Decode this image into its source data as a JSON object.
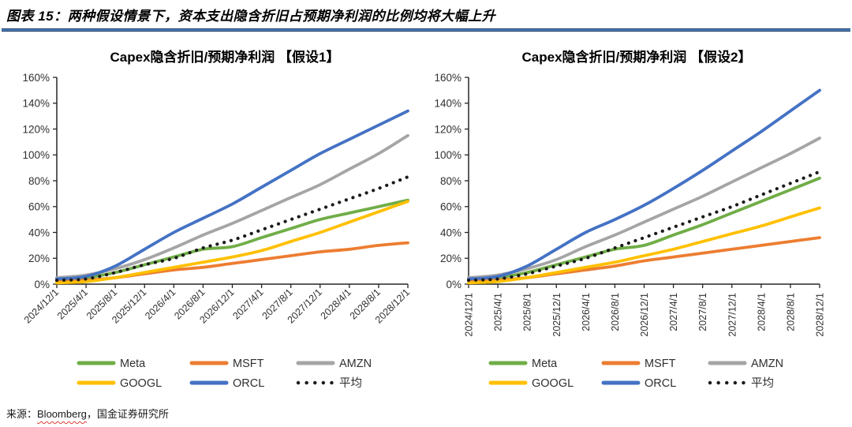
{
  "figure_title": "图表 15：两种假设情景下，资本支出隐含折旧占预期净利润的比例均将大幅上升",
  "source": {
    "prefix": "来源：",
    "vendor": "Bloomberg",
    "separator": "，",
    "institution": "国金证券研究所"
  },
  "colors": {
    "meta": "#70ad47",
    "msft": "#ed7d31",
    "amzn": "#a5a5a5",
    "googl": "#ffc000",
    "orcl": "#4472c4",
    "average": "#1a1a1a",
    "axis": "#262626",
    "rule_outer": "#17375e",
    "rule_inner": "#4f81bd",
    "squiggle": "#e03c31"
  },
  "chart_data": [
    {
      "type": "line",
      "title": "Capex隐含折旧/预期净利润 【假设1】",
      "x_labels": [
        "2024/12/1",
        "2025/4/1",
        "2025/8/1",
        "2025/12/1",
        "2026/4/1",
        "2026/8/1",
        "2026/12/1",
        "2027/4/1",
        "2027/8/1",
        "2027/12/1",
        "2028/4/1",
        "2028/8/1",
        "2028/12/1"
      ],
      "x_label_rotation": -45,
      "ylim": [
        0,
        160
      ],
      "y_tick_step": 20,
      "y_tick_suffix": "%",
      "grid": false,
      "legend_position": "bottom",
      "series": [
        {
          "name": "Meta",
          "color": "#70ad47",
          "style": "solid",
          "values": [
            3,
            5,
            9,
            15,
            21,
            27,
            29,
            36,
            43,
            50,
            55,
            60,
            65
          ]
        },
        {
          "name": "MSFT",
          "color": "#ed7d31",
          "style": "solid",
          "values": [
            2,
            3,
            5,
            8,
            11,
            13,
            16,
            19,
            22,
            25,
            27,
            30,
            32
          ]
        },
        {
          "name": "AMZN",
          "color": "#a5a5a5",
          "style": "solid",
          "values": [
            5,
            7,
            12,
            19,
            28,
            38,
            47,
            57,
            67,
            77,
            89,
            101,
            115
          ]
        },
        {
          "name": "GOOGL",
          "color": "#ffc000",
          "style": "solid",
          "values": [
            1,
            2,
            5,
            9,
            13,
            17,
            21,
            26,
            33,
            40,
            48,
            56,
            64
          ]
        },
        {
          "name": "ORCL",
          "color": "#4472c4",
          "style": "solid",
          "values": [
            4,
            6,
            14,
            27,
            40,
            51,
            62,
            75,
            88,
            101,
            112,
            123,
            134
          ]
        },
        {
          "name": "平均",
          "color": "#1a1a1a",
          "style": "dotted",
          "values": [
            3,
            4,
            9,
            15,
            20,
            28,
            34,
            42,
            50,
            58,
            66,
            74,
            83
          ]
        }
      ],
      "legend_rows": [
        [
          "Meta",
          "MSFT",
          "AMZN"
        ],
        [
          "GOOGL",
          "ORCL",
          "平均"
        ]
      ]
    },
    {
      "type": "line",
      "title": "Capex隐含折旧/预期净利润 【假设2】",
      "x_labels": [
        "2024/12/1",
        "2025/4/1",
        "2025/8/1",
        "2025/12/1",
        "2026/4/1",
        "2026/8/1",
        "2026/12/1",
        "2027/4/1",
        "2027/8/1",
        "2027/12/1",
        "2028/4/1",
        "2028/8/1",
        "2028/12/1"
      ],
      "x_label_rotation": -90,
      "ylim": [
        0,
        160
      ],
      "y_tick_step": 20,
      "y_tick_suffix": "%",
      "grid": false,
      "legend_position": "bottom",
      "series": [
        {
          "name": "Meta",
          "color": "#70ad47",
          "style": "solid",
          "values": [
            3,
            5,
            9,
            15,
            21,
            27,
            30,
            38,
            46,
            55,
            64,
            73,
            82
          ]
        },
        {
          "name": "MSFT",
          "color": "#ed7d31",
          "style": "solid",
          "values": [
            2,
            3,
            5,
            8,
            11,
            14,
            18,
            21,
            24,
            27,
            30,
            33,
            36
          ]
        },
        {
          "name": "AMZN",
          "color": "#a5a5a5",
          "style": "solid",
          "values": [
            5,
            7,
            12,
            19,
            29,
            38,
            48,
            58,
            68,
            79,
            90,
            101,
            113
          ]
        },
        {
          "name": "GOOGL",
          "color": "#ffc000",
          "style": "solid",
          "values": [
            1,
            2,
            5,
            9,
            13,
            17,
            22,
            27,
            33,
            39,
            45,
            52,
            59
          ]
        },
        {
          "name": "ORCL",
          "color": "#4472c4",
          "style": "solid",
          "values": [
            4,
            6,
            14,
            27,
            40,
            50,
            61,
            74,
            88,
            103,
            118,
            134,
            150
          ]
        },
        {
          "name": "平均",
          "color": "#1a1a1a",
          "style": "dotted",
          "values": [
            3,
            4,
            8,
            14,
            20,
            28,
            36,
            44,
            52,
            60,
            69,
            78,
            87
          ]
        }
      ],
      "legend_rows": [
        [
          "Meta",
          "MSFT",
          "AMZN"
        ],
        [
          "GOOGL",
          "ORCL",
          "平均"
        ]
      ]
    }
  ]
}
